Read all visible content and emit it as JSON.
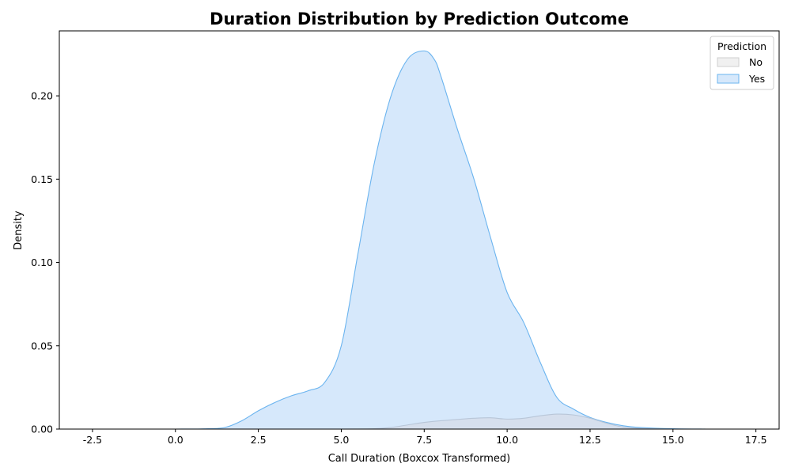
{
  "chart_data": {
    "type": "area",
    "title": "Duration Distribution by Prediction Outcome",
    "xlabel": "Call Duration (Boxcox Transformed)",
    "ylabel": "Density",
    "xlim": [
      -3.5,
      18.2
    ],
    "ylim": [
      0,
      0.239
    ],
    "xticks": [
      "-2.5",
      "0.0",
      "2.5",
      "5.0",
      "7.5",
      "10.0",
      "12.5",
      "15.0",
      "17.5"
    ],
    "xtick_values": [
      -2.5,
      0,
      2.5,
      5,
      7.5,
      10,
      12.5,
      15,
      17.5
    ],
    "yticks": [
      "0.00",
      "0.05",
      "0.10",
      "0.15",
      "0.20"
    ],
    "ytick_values": [
      0,
      0.05,
      0.1,
      0.15,
      0.2
    ],
    "grid": false,
    "legend": {
      "title": "Prediction",
      "placement": "top-right",
      "entries": [
        "No",
        "Yes"
      ]
    },
    "series": [
      {
        "name": "Yes",
        "fill": "#d6e8fb",
        "stroke": "#6bb4ef",
        "x": [
          -2.5,
          -1.0,
          0.0,
          1.0,
          1.5,
          2.0,
          2.5,
          3.0,
          3.5,
          4.0,
          4.5,
          5.0,
          5.5,
          6.0,
          6.5,
          7.0,
          7.5,
          7.8,
          8.0,
          8.5,
          9.0,
          9.5,
          10.0,
          10.5,
          11.0,
          11.5,
          12.0,
          12.5,
          13.0,
          13.5,
          14.0,
          15.0,
          16.0,
          17.2
        ],
        "y": [
          0.0,
          0.0,
          0.0,
          0.0002,
          0.001,
          0.005,
          0.011,
          0.016,
          0.02,
          0.023,
          0.028,
          0.05,
          0.105,
          0.16,
          0.2,
          0.222,
          0.227,
          0.222,
          0.212,
          0.18,
          0.15,
          0.115,
          0.082,
          0.064,
          0.04,
          0.019,
          0.012,
          0.007,
          0.004,
          0.002,
          0.001,
          0.0002,
          0.0,
          0.0
        ]
      },
      {
        "name": "No",
        "fill": "#d5dce8",
        "stroke": "#b8c6d8",
        "x": [
          -2.5,
          0.0,
          2.5,
          5.0,
          6.0,
          6.5,
          7.0,
          7.5,
          8.0,
          8.5,
          9.0,
          9.5,
          10.0,
          10.5,
          11.0,
          11.5,
          12.0,
          12.5,
          13.0,
          13.5,
          14.0,
          15.0,
          17.2
        ],
        "y": [
          0.0,
          0.0,
          0.0,
          0.0,
          0.0002,
          0.001,
          0.0025,
          0.004,
          0.005,
          0.0058,
          0.0065,
          0.0068,
          0.006,
          0.0065,
          0.008,
          0.009,
          0.0085,
          0.0065,
          0.0035,
          0.0012,
          0.0004,
          0.0,
          0.0
        ]
      }
    ]
  }
}
